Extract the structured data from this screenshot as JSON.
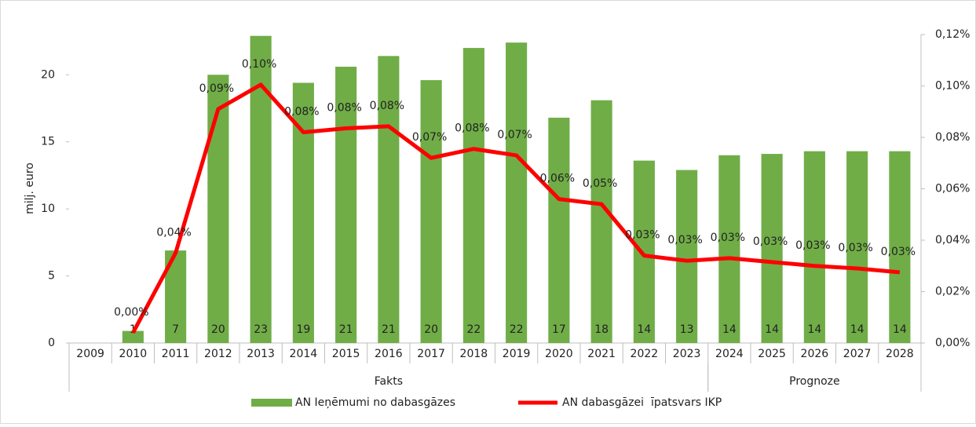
{
  "chart_data": {
    "type": "bar-line",
    "y_label": "milj. euro",
    "categories": [
      "2009",
      "2010",
      "2011",
      "2012",
      "2013",
      "2014",
      "2015",
      "2016",
      "2017",
      "2018",
      "2019",
      "2020",
      "2021",
      "2022",
      "2023",
      "2024",
      "2025",
      "2026",
      "2027",
      "2028"
    ],
    "groups": [
      {
        "label": "Fakts",
        "from": "2009",
        "to": "2023"
      },
      {
        "label": "Prognoze",
        "from": "2024",
        "to": "2028"
      }
    ],
    "series": [
      {
        "name": "AN Ieņēmumi no dabasgāzes",
        "type": "bar",
        "color": "#70ad47",
        "values": [
          null,
          0.9,
          6.9,
          20.0,
          22.9,
          19.4,
          20.6,
          21.4,
          19.6,
          22.0,
          22.4,
          16.8,
          18.1,
          13.6,
          12.9,
          14.0,
          14.1,
          14.3,
          14.3,
          14.3
        ],
        "value_labels": [
          null,
          "1",
          "7",
          "20",
          "23",
          "19",
          "21",
          "21",
          "20",
          "22",
          "22",
          "17",
          "18",
          "14",
          "13",
          "14",
          "14",
          "14",
          "14",
          "14"
        ]
      },
      {
        "name": "AN dabasgāzei  īpatsvars IKP",
        "type": "line",
        "axis": "y2",
        "color": "#ff0000",
        "values": [
          null,
          0.004,
          0.035,
          0.091,
          0.1005,
          0.082,
          0.0835,
          0.0843,
          0.072,
          0.0755,
          0.073,
          0.056,
          0.054,
          0.034,
          0.032,
          0.033,
          0.0315,
          0.03,
          0.029,
          0.0275
        ],
        "value_labels": [
          null,
          "0,00%",
          "0,04%",
          "0,09%",
          "0,10%",
          "0,08%",
          "0,08%",
          "0,08%",
          "0,07%",
          "0,08%",
          "0,07%",
          "0,06%",
          "0,05%",
          "0,03%",
          "0,03%",
          "0,03%",
          "0,03%",
          "0,03%",
          "0,03%",
          "0,03%"
        ]
      }
    ],
    "ylim": [
      0,
      23
    ],
    "yticks": [
      0,
      5,
      10,
      15,
      20
    ],
    "y2lim": [
      0,
      0.12
    ],
    "y2ticks": [
      {
        "value": 0,
        "label": "0,00%"
      },
      {
        "value": 0.02,
        "label": "0,02%"
      },
      {
        "value": 0.04,
        "label": "0,04%"
      },
      {
        "value": 0.06,
        "label": "0,06%"
      },
      {
        "value": 0.08,
        "label": "0,08%"
      },
      {
        "value": 0.1,
        "label": "0,10%"
      },
      {
        "value": 0.12,
        "label": "0,12%"
      }
    ],
    "legend": "bottom"
  }
}
